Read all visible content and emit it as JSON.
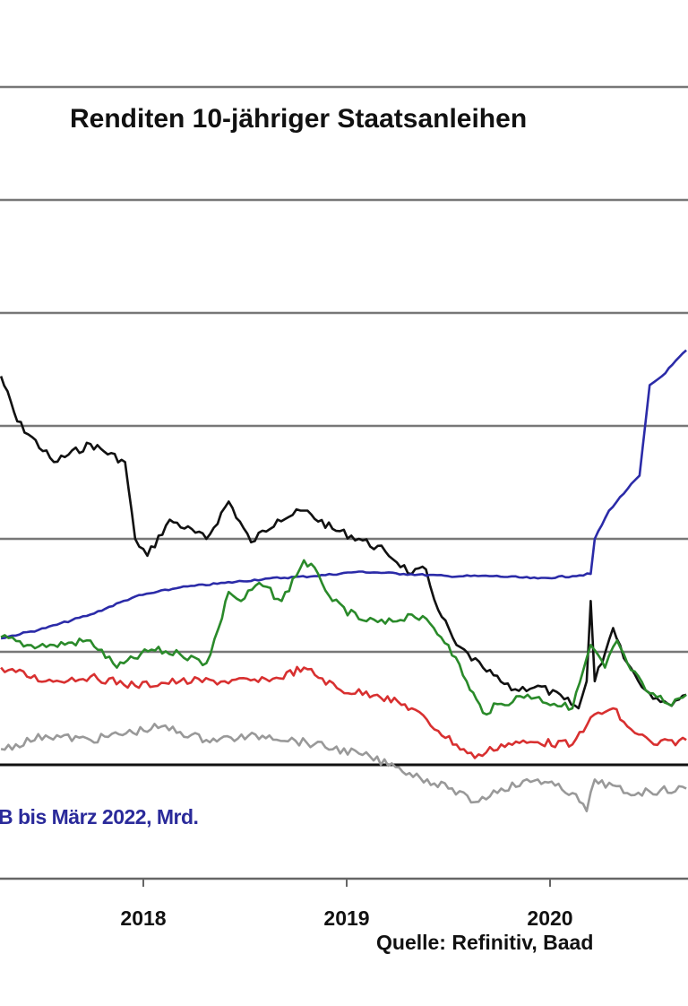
{
  "chart_data": {
    "type": "line",
    "title": "Renditen 10-jähriger Staatsanleihen",
    "annotation": "B bis März 2022, Mrd.",
    "source": "Quelle: Refinitiv, Baad",
    "xlabel": "",
    "ylabel": "",
    "x_ticks": [
      "2018",
      "2019",
      "2020"
    ],
    "xlim": [
      2017.3,
      2020.67
    ],
    "ylim": [
      -1,
      6.0
    ],
    "y_tick_labels_visible": false,
    "grid": true,
    "zero_line": true,
    "series": [
      {
        "color": "#111111",
        "x": [
          2017.3,
          2017.38,
          2017.56,
          2017.74,
          2017.91,
          2017.96,
          2018.02,
          2018.13,
          2018.31,
          2018.42,
          2018.53,
          2018.66,
          2018.79,
          2018.93,
          2019.06,
          2019.19,
          2019.32,
          2019.39,
          2019.45,
          2019.54,
          2019.67,
          2019.81,
          2019.94,
          2020.07,
          2020.14,
          2020.18,
          2020.2,
          2020.22,
          2020.31,
          2020.38,
          2020.47,
          2020.58,
          2020.67
        ],
        "y": [
          3.44,
          3.04,
          2.68,
          2.84,
          2.68,
          2.0,
          1.85,
          2.17,
          2.0,
          2.33,
          1.97,
          2.17,
          2.25,
          2.09,
          2.0,
          1.89,
          1.69,
          1.73,
          1.37,
          1.06,
          0.86,
          0.66,
          0.7,
          0.58,
          0.5,
          0.74,
          1.45,
          0.74,
          1.21,
          0.9,
          0.66,
          0.54,
          0.62
        ]
      },
      {
        "color": "#2b2ba8",
        "x": [
          2017.3,
          2017.52,
          2017.74,
          2017.96,
          2018.18,
          2018.4,
          2018.62,
          2018.84,
          2019.06,
          2019.28,
          2019.5,
          2019.72,
          2019.94,
          2020.11,
          2020.2,
          2020.22,
          2020.29,
          2020.38,
          2020.44,
          2020.47,
          2020.49,
          2020.55,
          2020.67
        ],
        "y": [
          1.12,
          1.21,
          1.33,
          1.49,
          1.57,
          1.61,
          1.65,
          1.67,
          1.71,
          1.69,
          1.67,
          1.67,
          1.65,
          1.67,
          1.69,
          2.0,
          2.25,
          2.44,
          2.56,
          3.04,
          3.36,
          3.44,
          3.67
        ]
      },
      {
        "color": "#2a8a2a",
        "x": [
          2017.3,
          2017.43,
          2017.56,
          2017.74,
          2017.87,
          2018.04,
          2018.18,
          2018.31,
          2018.37,
          2018.42,
          2018.48,
          2018.57,
          2018.68,
          2018.79,
          2018.86,
          2018.93,
          2019.06,
          2019.19,
          2019.32,
          2019.41,
          2019.5,
          2019.59,
          2019.67,
          2019.76,
          2019.89,
          2020.02,
          2020.11,
          2020.2,
          2020.27,
          2020.33,
          2020.38,
          2020.47,
          2020.58,
          2020.67
        ],
        "y": [
          1.13,
          1.06,
          1.06,
          1.1,
          0.86,
          1.02,
          0.98,
          0.9,
          1.21,
          1.53,
          1.45,
          1.61,
          1.45,
          1.81,
          1.69,
          1.45,
          1.29,
          1.25,
          1.33,
          1.25,
          1.06,
          0.74,
          0.46,
          0.54,
          0.62,
          0.54,
          0.5,
          1.06,
          0.86,
          1.1,
          0.9,
          0.66,
          0.54,
          0.62
        ]
      },
      {
        "color": "#d83030",
        "x": [
          2017.3,
          2017.52,
          2017.74,
          2017.96,
          2018.18,
          2018.4,
          2018.62,
          2018.79,
          2018.97,
          2019.15,
          2019.32,
          2019.45,
          2019.63,
          2019.76,
          2019.94,
          2020.11,
          2020.2,
          2020.31,
          2020.38,
          2020.51,
          2020.67
        ],
        "y": [
          0.86,
          0.74,
          0.78,
          0.7,
          0.74,
          0.74,
          0.74,
          0.86,
          0.66,
          0.62,
          0.5,
          0.3,
          0.06,
          0.18,
          0.2,
          0.18,
          0.42,
          0.5,
          0.34,
          0.18,
          0.22
        ]
      },
      {
        "color": "#999999",
        "x": [
          2017.3,
          2017.52,
          2017.74,
          2018.09,
          2018.31,
          2018.62,
          2018.84,
          2019.06,
          2019.24,
          2019.5,
          2019.63,
          2019.76,
          2019.94,
          2020.11,
          2020.18,
          2020.22,
          2020.38,
          2020.67
        ],
        "y": [
          0.14,
          0.26,
          0.22,
          0.34,
          0.22,
          0.26,
          0.18,
          0.1,
          -0.02,
          -0.21,
          -0.33,
          -0.21,
          -0.13,
          -0.25,
          -0.41,
          -0.13,
          -0.25,
          -0.21
        ]
      }
    ]
  }
}
